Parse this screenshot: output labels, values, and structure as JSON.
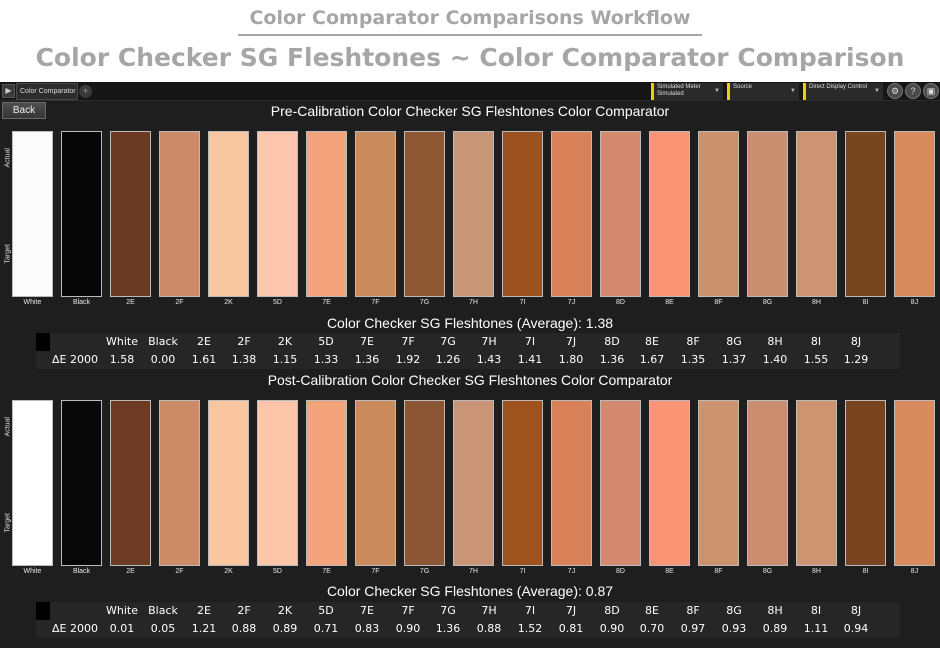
{
  "header": {
    "workflow_title": "Color Comparator Comparisons Workflow",
    "main_title": "Color Checker SG Fleshtones ~ Color Comparator Comparison"
  },
  "toolbar": {
    "tab_label": "Color Comparator",
    "dropdowns": [
      {
        "line1": "Simulated Meter",
        "line2": "Simulated"
      },
      {
        "line1": "Source",
        "line2": ""
      },
      {
        "line1": "Direct Display Control",
        "line2": ""
      }
    ],
    "icon_buttons": [
      "gear-icon",
      "help-icon",
      "maximize-icon"
    ]
  },
  "back_label": "Back",
  "side_labels": {
    "actual": "Actual",
    "target": "Target"
  },
  "patches": [
    {
      "name": "White",
      "pre": "#fbfbfb",
      "post": "#ffffff"
    },
    {
      "name": "Black",
      "pre": "#060606",
      "post": "#080808"
    },
    {
      "name": "2E",
      "pre": "#6a3a22",
      "post": "#6d3b23"
    },
    {
      "name": "2F",
      "pre": "#cc8b68",
      "post": "#cd8c68"
    },
    {
      "name": "2K",
      "pre": "#f8c7a1",
      "post": "#fac6a0"
    },
    {
      "name": "5D",
      "pre": "#fcc7ae",
      "post": "#fdc6ab"
    },
    {
      "name": "7E",
      "pre": "#f3a47b",
      "post": "#f3a47b"
    },
    {
      "name": "7F",
      "pre": "#c98b5c",
      "post": "#ca8a5c"
    },
    {
      "name": "7G",
      "pre": "#8c5732",
      "post": "#8b5634"
    },
    {
      "name": "7H",
      "pre": "#c69676",
      "post": "#c99576"
    },
    {
      "name": "7I",
      "pre": "#9c5120",
      "post": "#9e531f"
    },
    {
      "name": "7J",
      "pre": "#d98159",
      "post": "#d98159"
    },
    {
      "name": "8D",
      "pre": "#d38a6f",
      "post": "#d38a6e"
    },
    {
      "name": "8E",
      "pre": "#f99475",
      "post": "#f99575"
    },
    {
      "name": "8F",
      "pre": "#c9916c",
      "post": "#cc936f"
    },
    {
      "name": "8G",
      "pre": "#ca8e70",
      "post": "#ca8e6f"
    },
    {
      "name": "8H",
      "pre": "#cc9472",
      "post": "#ce9472"
    },
    {
      "name": "8I",
      "pre": "#77451f",
      "post": "#784520"
    },
    {
      "name": "8J",
      "pre": "#d78a5e",
      "post": "#d88b5f"
    }
  ],
  "pre": {
    "title": "Pre-Calibration Color Checker SG Fleshtones Color Comparator",
    "average_text": "Color Checker SG Fleshtones (Average): 1.38",
    "row_label": "ΔE 2000",
    "values": [
      "1.58",
      "0.00",
      "1.61",
      "1.38",
      "1.15",
      "1.33",
      "1.36",
      "1.92",
      "1.26",
      "1.43",
      "1.41",
      "1.80",
      "1.36",
      "1.67",
      "1.35",
      "1.37",
      "1.40",
      "1.55",
      "1.29"
    ]
  },
  "post": {
    "title": "Post-Calibration Color Checker SG Fleshtones Color Comparator",
    "average_text": "Color Checker SG Fleshtones (Average): 0.87",
    "row_label": "ΔE 2000",
    "values": [
      "0.01",
      "0.05",
      "1.21",
      "0.88",
      "0.89",
      "0.71",
      "0.83",
      "0.90",
      "1.36",
      "0.88",
      "1.52",
      "0.81",
      "0.90",
      "0.70",
      "0.97",
      "0.93",
      "0.89",
      "1.11",
      "0.94"
    ]
  }
}
